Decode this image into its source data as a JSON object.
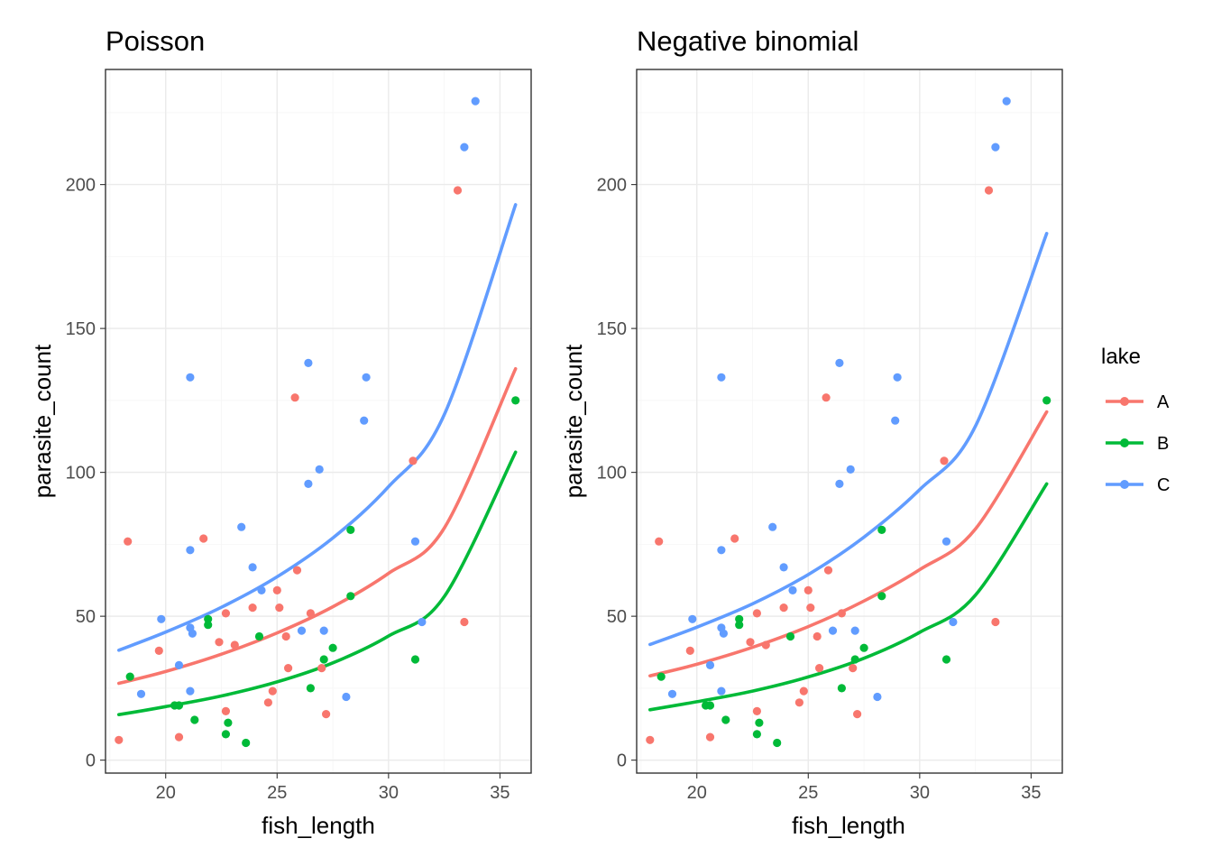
{
  "chart_data": [
    {
      "type": "scatter",
      "title": "Poisson",
      "xlabel": "fish_length",
      "ylabel": "parasite_count",
      "xlim": [
        17.3,
        36.4
      ],
      "ylim": [
        -4.5,
        240
      ],
      "xticks": [
        20,
        25,
        30,
        35
      ],
      "yticks": [
        0,
        50,
        100,
        150,
        200
      ],
      "grid": true,
      "series": [
        {
          "name": "A",
          "points": [
            [
              17.9,
              7
            ],
            [
              18.3,
              76
            ],
            [
              19.7,
              38
            ],
            [
              20.6,
              8
            ],
            [
              21.7,
              77
            ],
            [
              22.4,
              41
            ],
            [
              22.7,
              51
            ],
            [
              22.7,
              17
            ],
            [
              23.1,
              40
            ],
            [
              23.9,
              53
            ],
            [
              24.6,
              20
            ],
            [
              24.8,
              24
            ],
            [
              25.0,
              59
            ],
            [
              25.1,
              53
            ],
            [
              25.4,
              43
            ],
            [
              25.5,
              32
            ],
            [
              25.8,
              126
            ],
            [
              25.9,
              66
            ],
            [
              26.5,
              51
            ],
            [
              27.0,
              32
            ],
            [
              27.2,
              16
            ],
            [
              31.1,
              104
            ],
            [
              33.1,
              198
            ],
            [
              33.4,
              48
            ]
          ],
          "fit": [
            [
              17.9,
              26.7
            ],
            [
              20,
              30.8
            ],
            [
              22.5,
              36.8
            ],
            [
              25,
              44.2
            ],
            [
              27.5,
              53.3
            ],
            [
              30,
              64.9
            ],
            [
              32.5,
              80.6
            ],
            [
              35.7,
              136
            ]
          ]
        },
        {
          "name": "B",
          "points": [
            [
              18.4,
              29
            ],
            [
              20.4,
              19
            ],
            [
              20.6,
              19
            ],
            [
              21.3,
              14
            ],
            [
              21.9,
              47
            ],
            [
              21.9,
              49
            ],
            [
              22.7,
              9
            ],
            [
              22.8,
              13
            ],
            [
              23.6,
              6
            ],
            [
              24.2,
              43
            ],
            [
              26.5,
              25
            ],
            [
              27.1,
              35
            ],
            [
              27.5,
              39
            ],
            [
              28.3,
              57
            ],
            [
              28.3,
              80
            ],
            [
              31.2,
              35
            ],
            [
              35.7,
              125
            ]
          ],
          "fit": [
            [
              17.9,
              15.8
            ],
            [
              20,
              18.6
            ],
            [
              22.5,
              22.3
            ],
            [
              25,
              27.2
            ],
            [
              27.5,
              33.8
            ],
            [
              30,
              43.1
            ],
            [
              32.5,
              56.8
            ],
            [
              35.7,
              107
            ]
          ]
        },
        {
          "name": "C",
          "points": [
            [
              18.9,
              23
            ],
            [
              19.8,
              49
            ],
            [
              20.6,
              33
            ],
            [
              21.1,
              133
            ],
            [
              21.1,
              73
            ],
            [
              21.1,
              24
            ],
            [
              21.1,
              46
            ],
            [
              21.2,
              44
            ],
            [
              23.4,
              81
            ],
            [
              23.9,
              67
            ],
            [
              24.3,
              59
            ],
            [
              26.1,
              45
            ],
            [
              26.4,
              96
            ],
            [
              26.4,
              138
            ],
            [
              26.9,
              101
            ],
            [
              27.1,
              45
            ],
            [
              28.1,
              22
            ],
            [
              28.9,
              118
            ],
            [
              29.0,
              133
            ],
            [
              31.2,
              76
            ],
            [
              31.5,
              48
            ],
            [
              33.4,
              213
            ],
            [
              33.9,
              229
            ]
          ],
          "fit": [
            [
              17.9,
              38.2
            ],
            [
              20,
              44.5
            ],
            [
              22.5,
              53.1
            ],
            [
              25,
              63.7
            ],
            [
              27.5,
              77.2
            ],
            [
              30,
              95
            ],
            [
              32.5,
              120
            ],
            [
              35.7,
              193
            ]
          ]
        }
      ]
    },
    {
      "type": "scatter",
      "title": "Negative binomial",
      "xlabel": "fish_length",
      "ylabel": "parasite_count",
      "xlim": [
        17.3,
        36.4
      ],
      "ylim": [
        -4.5,
        240
      ],
      "xticks": [
        20,
        25,
        30,
        35
      ],
      "yticks": [
        0,
        50,
        100,
        150,
        200
      ],
      "grid": true,
      "series": [
        {
          "name": "A",
          "points": [
            [
              17.9,
              7
            ],
            [
              18.3,
              76
            ],
            [
              19.7,
              38
            ],
            [
              20.6,
              8
            ],
            [
              21.7,
              77
            ],
            [
              22.4,
              41
            ],
            [
              22.7,
              51
            ],
            [
              22.7,
              17
            ],
            [
              23.1,
              40
            ],
            [
              23.9,
              53
            ],
            [
              24.6,
              20
            ],
            [
              24.8,
              24
            ],
            [
              25.0,
              59
            ],
            [
              25.1,
              53
            ],
            [
              25.4,
              43
            ],
            [
              25.5,
              32
            ],
            [
              25.8,
              126
            ],
            [
              25.9,
              66
            ],
            [
              26.5,
              51
            ],
            [
              27.0,
              32
            ],
            [
              27.2,
              16
            ],
            [
              31.1,
              104
            ],
            [
              33.1,
              198
            ],
            [
              33.4,
              48
            ]
          ],
          "fit": [
            [
              17.9,
              29.3
            ],
            [
              20,
              33.3
            ],
            [
              22.5,
              39.2
            ],
            [
              25,
              46.4
            ],
            [
              27.5,
              55.3
            ],
            [
              30,
              66.2
            ],
            [
              32.5,
              80.3
            ],
            [
              35.7,
              121
            ]
          ]
        },
        {
          "name": "B",
          "points": [
            [
              18.4,
              29
            ],
            [
              20.4,
              19
            ],
            [
              20.6,
              19
            ],
            [
              21.3,
              14
            ],
            [
              21.9,
              47
            ],
            [
              21.9,
              49
            ],
            [
              22.7,
              9
            ],
            [
              22.8,
              13
            ],
            [
              23.6,
              6
            ],
            [
              24.2,
              43
            ],
            [
              26.5,
              25
            ],
            [
              27.1,
              35
            ],
            [
              27.5,
              39
            ],
            [
              28.3,
              57
            ],
            [
              28.3,
              80
            ],
            [
              31.2,
              35
            ],
            [
              35.7,
              125
            ]
          ],
          "fit": [
            [
              17.9,
              17.5
            ],
            [
              20,
              20.3
            ],
            [
              22.5,
              24
            ],
            [
              25,
              28.9
            ],
            [
              27.5,
              35.4
            ],
            [
              30,
              44.4
            ],
            [
              32.5,
              57.3
            ],
            [
              35.7,
              96
            ]
          ]
        },
        {
          "name": "C",
          "points": [
            [
              18.9,
              23
            ],
            [
              19.8,
              49
            ],
            [
              20.6,
              33
            ],
            [
              21.1,
              133
            ],
            [
              21.1,
              73
            ],
            [
              21.1,
              24
            ],
            [
              21.1,
              46
            ],
            [
              21.2,
              44
            ],
            [
              23.4,
              81
            ],
            [
              23.9,
              67
            ],
            [
              24.3,
              59
            ],
            [
              26.1,
              45
            ],
            [
              26.4,
              96
            ],
            [
              26.4,
              138
            ],
            [
              26.9,
              101
            ],
            [
              27.1,
              45
            ],
            [
              28.1,
              22
            ],
            [
              28.9,
              118
            ],
            [
              29.0,
              133
            ],
            [
              31.2,
              76
            ],
            [
              31.5,
              48
            ],
            [
              33.4,
              213
            ],
            [
              33.9,
              229
            ]
          ],
          "fit": [
            [
              17.9,
              40.2
            ],
            [
              20,
              46.2
            ],
            [
              22.5,
              54.3
            ],
            [
              25,
              64.5
            ],
            [
              27.5,
              77.5
            ],
            [
              30,
              94
            ],
            [
              32.5,
              116
            ],
            [
              35.7,
              183
            ]
          ]
        }
      ]
    }
  ],
  "legend": {
    "title": "lake",
    "placement": "right",
    "items": [
      {
        "label": "A",
        "color": "#F8766D"
      },
      {
        "label": "B",
        "color": "#00BA38"
      },
      {
        "label": "C",
        "color": "#619CFF"
      }
    ]
  }
}
